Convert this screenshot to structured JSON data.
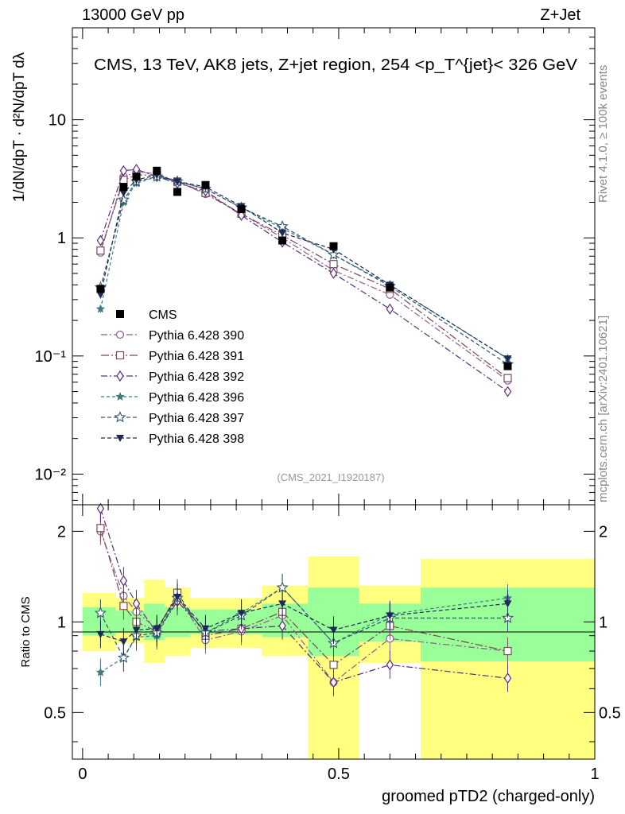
{
  "header": {
    "left": "13000 GeV pp",
    "right": "Z+Jet"
  },
  "side_text": {
    "rivet": "Rivet 4.1.0, ≥ 100k events",
    "mcplots": "mcplots.cern.ch [arXiv:2401.10621]"
  },
  "colors": {
    "cms": "#000000",
    "s390": "#8f5c8f",
    "s391": "#7a4a57",
    "s392": "#5a2d7d",
    "s396": "#3f7a80",
    "s397": "#2f5570",
    "s398": "#1d2a55",
    "band_outer": "#ffff80",
    "band_inner": "#99ff99"
  },
  "chart_data": [
    {
      "type": "line",
      "title": "CMS, 13 TeV, AK8 jets, Z+jet region, 254 <p_T^{jet}< 326 GeV",
      "watermark": "(CMS_2021_I1920187)",
      "ylabel": "1/dN/dpT · d²N/dpT dλ",
      "yscale": "log",
      "ylim": [
        0.0055,
        60
      ],
      "xlim": [
        -0.02,
        1.0
      ],
      "ytick_labels": [
        "10⁻²",
        "10⁻¹",
        "1",
        "10"
      ],
      "ytick_values": [
        0.01,
        0.1,
        1,
        10
      ],
      "x": [
        0.035,
        0.08,
        0.105,
        0.145,
        0.185,
        0.24,
        0.31,
        0.39,
        0.49,
        0.6,
        0.83
      ],
      "series": [
        {
          "name": "CMS",
          "marker": "square",
          "values": [
            0.37,
            2.7,
            3.3,
            3.7,
            2.45,
            2.8,
            1.75,
            0.95,
            0.85,
            0.38,
            0.082
          ]
        },
        {
          "name": "Pythia 6.428 390",
          "marker": "circle",
          "values": [
            0.75,
            3.3,
            3.6,
            3.5,
            3.0,
            2.35,
            1.6,
            1.0,
            0.53,
            0.33,
            0.062
          ]
        },
        {
          "name": "Pythia 6.428 391",
          "marker": "square-open",
          "values": [
            0.78,
            3.1,
            3.4,
            3.4,
            3.0,
            2.4,
            1.6,
            1.05,
            0.6,
            0.37,
            0.065
          ]
        },
        {
          "name": "Pythia 6.428 392",
          "marker": "diamond",
          "values": [
            0.95,
            3.7,
            3.8,
            3.3,
            2.9,
            2.5,
            1.55,
            0.92,
            0.5,
            0.25,
            0.05
          ]
        },
        {
          "name": "Pythia 6.428 396",
          "marker": "star-filled",
          "values": [
            0.25,
            2.0,
            2.9,
            3.3,
            3.0,
            2.6,
            1.8,
            1.2,
            0.72,
            0.4,
            0.095
          ]
        },
        {
          "name": "Pythia 6.428 397",
          "marker": "star-open",
          "values": [
            0.38,
            2.1,
            3.0,
            3.3,
            3.0,
            2.6,
            1.8,
            1.25,
            0.72,
            0.39,
            0.085
          ]
        },
        {
          "name": "Pythia 6.428 398",
          "marker": "triangle-down",
          "values": [
            0.33,
            2.4,
            3.1,
            3.4,
            3.0,
            2.7,
            1.85,
            1.1,
            0.8,
            0.4,
            0.095
          ]
        }
      ]
    },
    {
      "type": "line",
      "ylabel": "Ratio to CMS",
      "xlabel": "groomed pTD2 (charged-only)",
      "ylim": [
        0.35,
        2.45
      ],
      "xlim": [
        -0.02,
        1.0
      ],
      "xtick_labels": [
        "0",
        "0.5",
        "1"
      ],
      "xtick_values": [
        0,
        0.5,
        1
      ],
      "ytick_labels": [
        "0.5",
        "1",
        "2"
      ],
      "ytick_values": [
        0.5,
        1,
        2
      ],
      "bands": [
        {
          "x0": 0.0,
          "x1": 0.065,
          "outer": [
            0.8,
            1.25
          ],
          "inner": [
            0.9,
            1.12
          ]
        },
        {
          "x0": 0.065,
          "x1": 0.095,
          "outer": [
            0.85,
            1.2
          ],
          "inner": [
            0.92,
            1.09
          ]
        },
        {
          "x0": 0.095,
          "x1": 0.12,
          "outer": [
            0.85,
            1.2
          ],
          "inner": [
            0.92,
            1.09
          ]
        },
        {
          "x0": 0.12,
          "x1": 0.16,
          "outer": [
            0.73,
            1.38
          ],
          "inner": [
            0.87,
            1.15
          ]
        },
        {
          "x0": 0.16,
          "x1": 0.21,
          "outer": [
            0.77,
            1.3
          ],
          "inner": [
            0.89,
            1.12
          ]
        },
        {
          "x0": 0.21,
          "x1": 0.35,
          "outer": [
            0.82,
            1.2
          ],
          "inner": [
            0.91,
            1.1
          ]
        },
        {
          "x0": 0.35,
          "x1": 0.44,
          "outer": [
            0.77,
            1.32
          ],
          "inner": [
            0.89,
            1.15
          ]
        },
        {
          "x0": 0.44,
          "x1": 0.54,
          "outer": [
            0.35,
            1.65
          ],
          "inner": [
            0.77,
            1.3
          ]
        },
        {
          "x0": 0.54,
          "x1": 0.66,
          "outer": [
            0.73,
            1.32
          ],
          "inner": [
            0.86,
            1.15
          ]
        },
        {
          "x0": 0.66,
          "x1": 1.0,
          "outer": [
            0.35,
            1.62
          ],
          "inner": [
            0.74,
            1.3
          ]
        }
      ],
      "x": [
        0.035,
        0.08,
        0.105,
        0.145,
        0.185,
        0.24,
        0.31,
        0.39,
        0.49,
        0.6,
        0.83
      ],
      "series": [
        {
          "name": "Pythia 6.428 390",
          "values": [
            2.0,
            1.22,
            1.08,
            0.95,
            1.22,
            0.87,
            0.93,
            1.05,
            0.63,
            0.88,
            0.8
          ]
        },
        {
          "name": "Pythia 6.428 391",
          "values": [
            2.05,
            1.13,
            1.0,
            0.93,
            1.25,
            0.9,
            0.95,
            1.08,
            0.72,
            0.97,
            0.8
          ]
        },
        {
          "name": "Pythia 6.428 392",
          "values": [
            2.38,
            1.37,
            1.15,
            0.92,
            1.17,
            0.93,
            0.95,
            0.97,
            0.63,
            0.72,
            0.65
          ]
        },
        {
          "name": "Pythia 6.428 396",
          "values": [
            0.68,
            0.76,
            0.89,
            0.9,
            1.2,
            0.92,
            1.07,
            1.3,
            0.85,
            1.06,
            1.2
          ]
        },
        {
          "name": "Pythia 6.428 397",
          "values": [
            1.07,
            0.76,
            0.9,
            0.92,
            1.2,
            0.92,
            1.05,
            1.3,
            0.85,
            1.03,
            1.03
          ]
        },
        {
          "name": "Pythia 6.428 398",
          "values": [
            0.91,
            0.86,
            0.94,
            0.95,
            1.21,
            0.95,
            1.07,
            1.15,
            0.94,
            1.05,
            1.15
          ]
        }
      ]
    }
  ]
}
